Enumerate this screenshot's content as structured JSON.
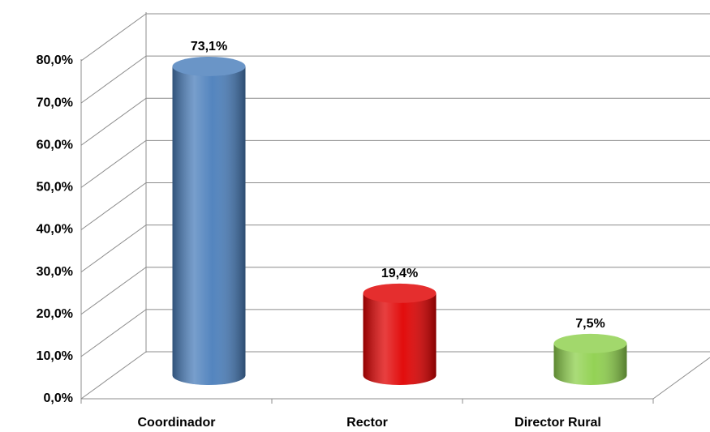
{
  "chart_data": {
    "type": "bar3d",
    "categories": [
      "Coordinador",
      "Rector",
      "Director Rural"
    ],
    "values": [
      73.1,
      19.4,
      7.5
    ],
    "value_labels": [
      "73,1%",
      "19,4%",
      "7,5%"
    ],
    "colors": [
      "#4a7ebb",
      "#e00000",
      "#8ed04c"
    ],
    "ylim": [
      0,
      80
    ],
    "yticks": [
      {
        "value": 0,
        "label": "0,0%"
      },
      {
        "value": 10,
        "label": "10,0%"
      },
      {
        "value": 20,
        "label": "20,0%"
      },
      {
        "value": 30,
        "label": "30,0%"
      },
      {
        "value": 40,
        "label": "40,0%"
      },
      {
        "value": 50,
        "label": "50,0%"
      },
      {
        "value": 60,
        "label": "60,0%"
      },
      {
        "value": 70,
        "label": "70,0%"
      },
      {
        "value": 80,
        "label": "80,0%"
      }
    ],
    "grid": true
  }
}
